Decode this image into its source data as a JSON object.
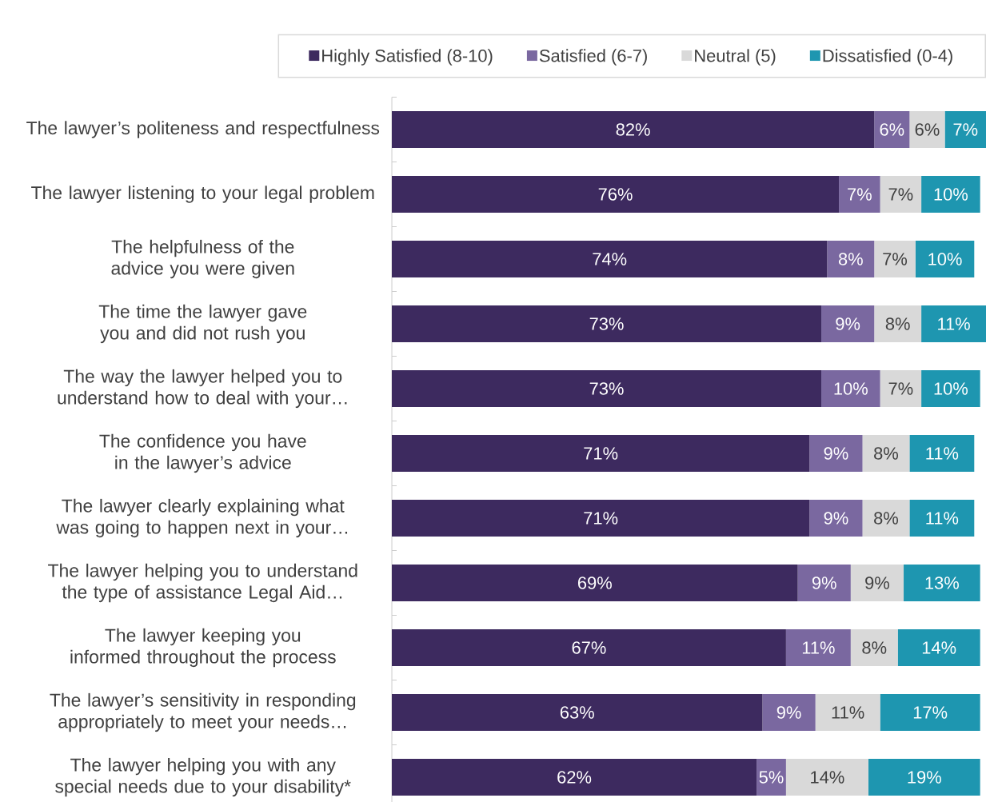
{
  "chart_data": {
    "type": "bar",
    "orientation": "horizontal",
    "stacked": true,
    "legend": "top",
    "categories": [
      "The lawyer’s politeness and respectfulness",
      "The lawyer listening to your legal problem",
      "The helpfulness of the advice you were given",
      "The time the lawyer gave you and did not rush you",
      "The way the lawyer helped you to understand how to deal with your…",
      "The confidence you have in the lawyer’s advice",
      "The lawyer clearly explaining what was going to happen next in your…",
      "The lawyer helping you to understand the type of assistance Legal Aid…",
      "The lawyer keeping you informed throughout the process",
      "The lawyer’s sensitivity in responding appropriately to meet your needs…",
      "The lawyer helping you with any special needs due to your disability*"
    ],
    "series": [
      {
        "name": "Highly Satisfied (8-10)",
        "color": "#3d2a5f",
        "values": [
          82,
          76,
          74,
          73,
          73,
          71,
          71,
          69,
          67,
          63,
          62
        ],
        "value_labels": [
          "82%",
          "76%",
          "74%",
          "73%",
          "73%",
          "71%",
          "71%",
          "69%",
          "67%",
          "63%",
          "62%"
        ]
      },
      {
        "name": "Satisfied (6-7)",
        "color": "#7a68a0",
        "values": [
          6,
          7,
          8,
          9,
          10,
          9,
          9,
          9,
          11,
          9,
          5
        ],
        "value_labels": [
          "6%",
          "7%",
          "8%",
          "9%",
          "10%",
          "9%",
          "9%",
          "9%",
          "11%",
          "9%",
          "5%"
        ]
      },
      {
        "name": "Neutral (5)",
        "color": "#d9d9d9",
        "values": [
          6,
          7,
          7,
          8,
          7,
          8,
          8,
          9,
          8,
          11,
          14
        ],
        "value_labels": [
          "6%",
          "7%",
          "7%",
          "8%",
          "7%",
          "8%",
          "8%",
          "9%",
          "8%",
          "11%",
          "14%"
        ]
      },
      {
        "name": "Dissatisfied (0-4)",
        "color": "#1e96b0",
        "values": [
          7,
          10,
          10,
          11,
          10,
          11,
          11,
          13,
          14,
          17,
          19
        ],
        "value_labels": [
          "7%",
          "10%",
          "10%",
          "11%",
          "10%",
          "11%",
          "11%",
          "13%",
          "14%",
          "17%",
          "19%"
        ]
      }
    ]
  }
}
